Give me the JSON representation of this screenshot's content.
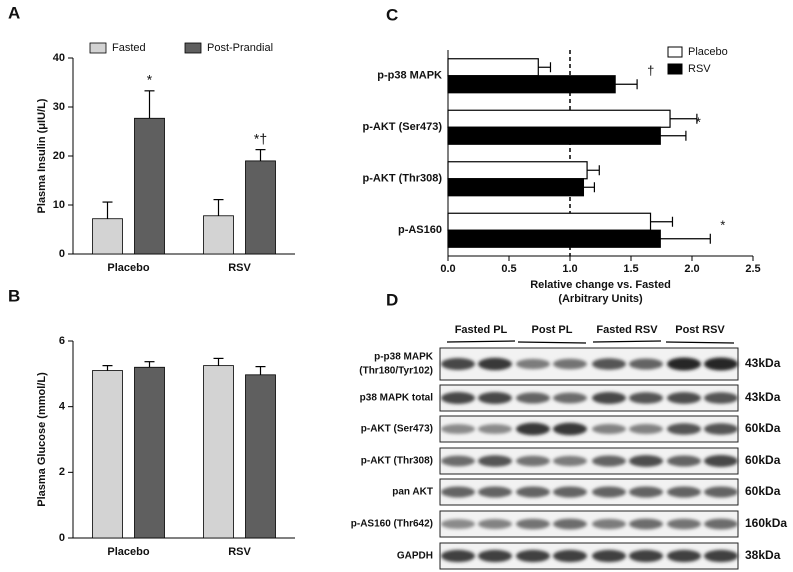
{
  "chart_data": [
    {
      "panel": "A",
      "type": "bar",
      "ylabel": "Plasma Insulin (μIU/L)",
      "categories": [
        "Placebo",
        "RSV"
      ],
      "series": [
        {
          "name": "Fasted",
          "color": "#d3d3d3",
          "values": [
            7.2,
            7.8
          ],
          "errors": [
            3.4,
            3.3
          ],
          "annotations": [
            null,
            null
          ]
        },
        {
          "name": "Post-Prandial",
          "color": "#5f5f5f",
          "values": [
            27.7,
            19
          ],
          "errors": [
            5.6,
            2.3
          ],
          "annotations": [
            "*",
            "*†"
          ]
        }
      ],
      "ylim": [
        0,
        40
      ],
      "yticks": [
        0,
        10,
        20,
        30,
        40
      ],
      "legend": "top"
    },
    {
      "panel": "B",
      "type": "bar",
      "ylabel": "Plasma Glucose (mmol/L)",
      "categories": [
        "Placebo",
        "RSV"
      ],
      "series": [
        {
          "color": "#d3d3d3",
          "values": [
            5.1,
            5.25
          ],
          "errors": [
            0.15,
            0.22
          ]
        },
        {
          "color": "#5f5f5f",
          "values": [
            5.2,
            4.97
          ],
          "errors": [
            0.17,
            0.25
          ]
        }
      ],
      "ylim": [
        0,
        6
      ],
      "yticks": [
        0,
        2,
        4,
        6
      ]
    },
    {
      "panel": "C",
      "type": "barh",
      "xlabel": [
        "Relative change vs. Fasted",
        "(Arbitrary  Units)"
      ],
      "categories": [
        "p-p38 MAPK",
        "p-AKT (Ser473)",
        "p-AKT (Thr308)",
        "p-AS160"
      ],
      "series": [
        {
          "name": "Placebo",
          "color": "#ffffff",
          "values": [
            0.74,
            1.82,
            1.14,
            1.66
          ],
          "errors": [
            0.1,
            0.22,
            0.1,
            0.18
          ],
          "annotations": [
            null,
            null,
            null,
            null
          ]
        },
        {
          "name": "RSV",
          "color": "#000000",
          "values": [
            1.37,
            1.74,
            1.11,
            1.74
          ],
          "errors": [
            0.18,
            0.21,
            0.09,
            0.41
          ],
          "annotations": [
            "†",
            "*",
            null,
            "*"
          ]
        }
      ],
      "xlim": [
        0,
        2.5
      ],
      "xticks": [
        {
          "value": 0,
          "label": "0.0"
        },
        0.5,
        {
          "value": 1,
          "label": "1.0"
        },
        1.5,
        {
          "value": 2,
          "label": "2.0"
        },
        2.5
      ],
      "refline": 1,
      "legend": "upper right"
    }
  ],
  "blot": {
    "panel": "D",
    "groups": [
      "Fasted PL",
      "Post PL",
      "Fasted RSV",
      "Post RSV"
    ],
    "rows": [
      {
        "label": [
          "p-p38 MAPK",
          "(Thr180/Tyr102)"
        ],
        "size": "43kDa"
      },
      {
        "label": "p38 MAPK total",
        "size": "43kDa"
      },
      {
        "label": "p-AKT (Ser473)",
        "size": "60kDa"
      },
      {
        "label": "p-AKT (Thr308)",
        "size": "60kDa"
      },
      {
        "label": "pan AKT",
        "size": "60kDa"
      },
      {
        "label": "p-AS160 (Thr642)",
        "size": "160kDa"
      },
      {
        "label": "GAPDH",
        "size": "38kDa"
      }
    ]
  }
}
